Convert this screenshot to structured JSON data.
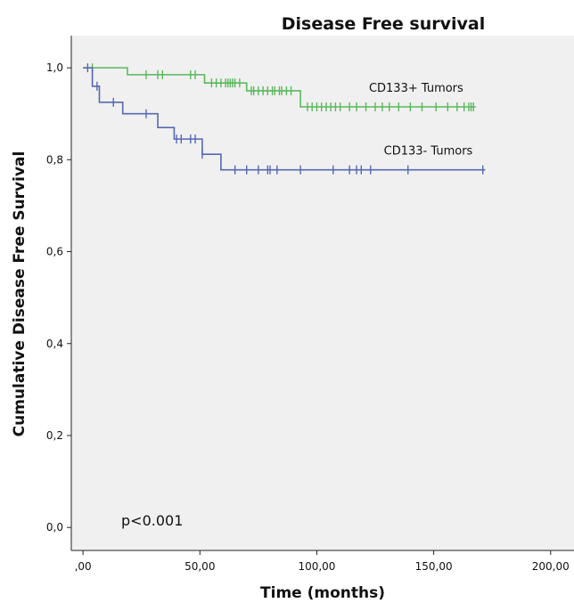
{
  "chart_data": {
    "type": "line",
    "title": "Disease Free survival",
    "xlabel": "Time (months)",
    "ylabel": "Cumulative Disease Free Survival",
    "xlim": [
      -5,
      210
    ],
    "ylim": [
      -0.05,
      1.07
    ],
    "x_ticks": [
      0,
      50,
      100,
      150,
      200
    ],
    "x_tick_labels": [
      ",00",
      "50,00",
      "100,00",
      "150,00",
      "200,00"
    ],
    "y_ticks": [
      0,
      0.2,
      0.4,
      0.6,
      0.8,
      1.0
    ],
    "y_tick_labels": [
      "0,0",
      "0,2",
      "0,4",
      "0,6",
      "0,8",
      "1,0"
    ],
    "grid": false,
    "annotation": "p<0.001",
    "colors": {
      "plot_background": "#f0f0f0",
      "axis": "#222222"
    },
    "series": [
      {
        "name": "CD133+ Tumors",
        "color": "#5ab85c",
        "steps": [
          [
            0,
            1.0
          ],
          [
            19,
            0.985
          ],
          [
            52,
            0.967
          ],
          [
            70,
            0.95
          ],
          [
            93,
            0.915
          ],
          [
            168,
            0.915
          ]
        ],
        "censored": [
          4,
          27,
          32,
          34,
          46,
          48,
          55,
          57,
          59,
          61,
          62,
          63,
          64,
          65,
          67,
          72,
          73,
          75,
          77,
          79,
          81,
          82,
          84,
          85,
          87,
          89,
          96,
          98,
          100,
          102,
          104,
          106,
          108,
          110,
          114,
          117,
          121,
          125,
          128,
          131,
          135,
          140,
          145,
          151,
          156,
          160,
          163,
          165,
          166,
          167
        ]
      },
      {
        "name": "CD133- Tumors",
        "color": "#5668b3",
        "steps": [
          [
            0,
            1.0
          ],
          [
            4,
            0.96
          ],
          [
            7,
            0.925
          ],
          [
            17,
            0.9
          ],
          [
            32,
            0.87
          ],
          [
            39,
            0.845
          ],
          [
            51,
            0.812
          ],
          [
            59,
            0.778
          ],
          [
            172,
            0.778
          ]
        ],
        "censored": [
          2,
          6,
          13,
          27,
          40,
          42,
          46,
          48,
          51,
          65,
          70,
          75,
          79,
          80,
          83,
          93,
          107,
          114,
          117,
          119,
          123,
          139,
          171
        ]
      }
    ]
  }
}
